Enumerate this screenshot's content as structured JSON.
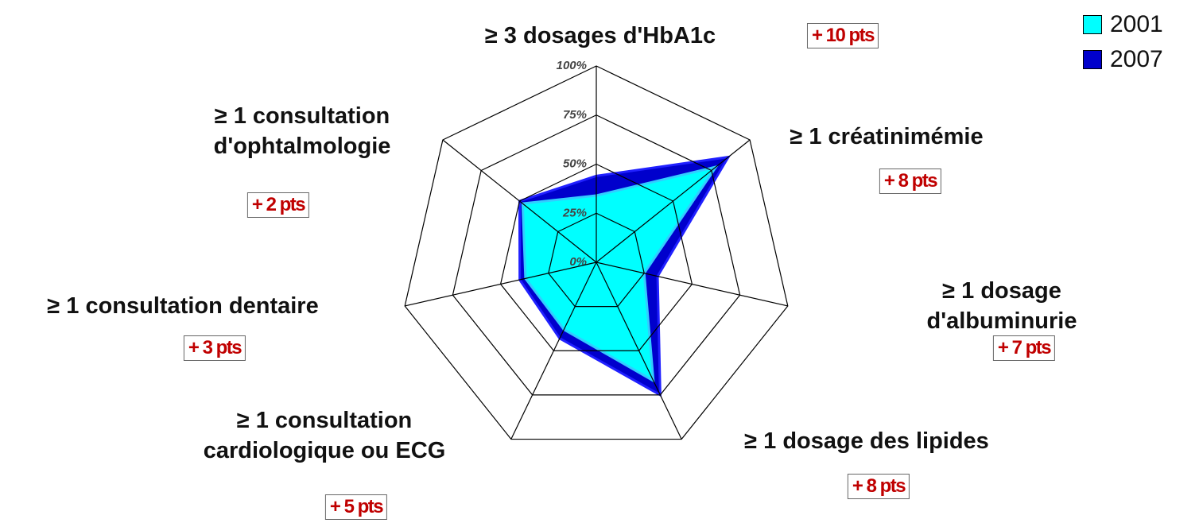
{
  "chart_data": {
    "type": "radar",
    "categories": [
      "≥ 3 dosages d'HbA1c",
      "≥ 1 créatinimémie",
      "≥ 1 dosage d'albuminurie",
      "≥ 1 dosage des lipides",
      "≥ 1 consultation\ncardiologique ou ECG",
      "≥ 1 consultation dentaire",
      "≥ 1 consultation\nd'ophtalmologie"
    ],
    "annotations": [
      "+ 10 pts",
      "+ 8 pts",
      "+ 7 pts",
      "+ 8 pts",
      "+ 5 pts",
      "+ 3 pts",
      "+ 2 pts"
    ],
    "series": [
      {
        "name": "2007",
        "color": "#0000cc",
        "values": [
          44,
          86,
          32,
          75,
          43,
          40,
          50
        ]
      },
      {
        "name": "2001",
        "color": "#00ffff",
        "values": [
          34,
          78,
          25,
          67,
          38,
          37,
          48
        ]
      }
    ],
    "rlim": [
      0,
      100
    ],
    "rticks": [
      {
        "value": 0,
        "label": "0%"
      },
      {
        "value": 25,
        "label": "25%"
      },
      {
        "value": 50,
        "label": "50%"
      },
      {
        "value": 75,
        "label": "75%"
      },
      {
        "value": 100,
        "label": "100%"
      }
    ],
    "legend": "top-right"
  }
}
